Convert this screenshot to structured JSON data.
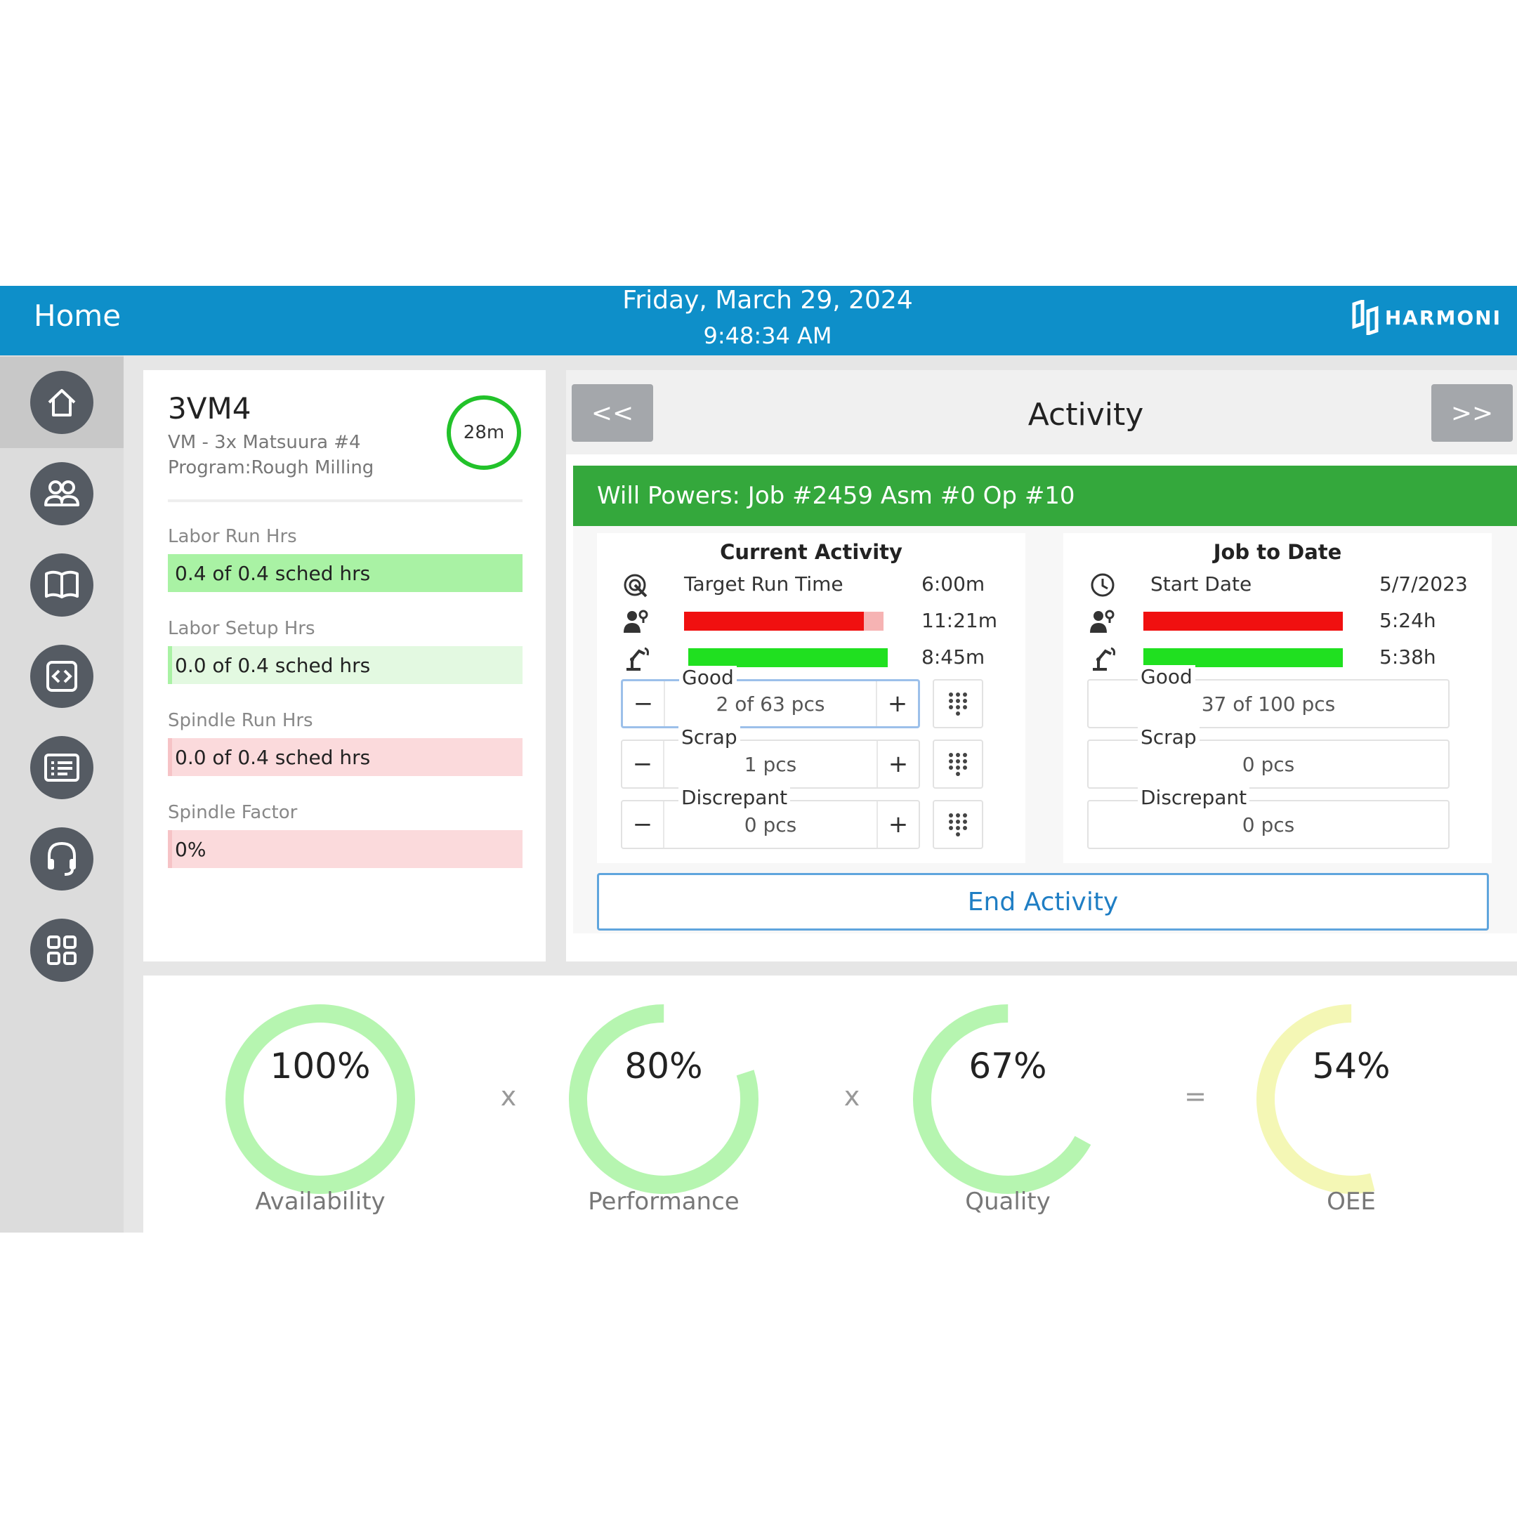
{
  "header": {
    "title": "Home",
    "date": "Friday, March 29, 2024",
    "time": "9:48:34 AM",
    "logo_text": "HARMONI"
  },
  "sidebar": {
    "items": [
      {
        "icon": "home-icon",
        "active": true
      },
      {
        "icon": "users-icon",
        "active": false
      },
      {
        "icon": "book-icon",
        "active": false
      },
      {
        "icon": "code-icon",
        "active": false
      },
      {
        "icon": "list-card-icon",
        "active": false
      },
      {
        "icon": "headset-icon",
        "active": false
      },
      {
        "icon": "grid-icon",
        "active": false
      }
    ]
  },
  "machine": {
    "name": "3VM4",
    "description": "VM - 3x Matsuura #4",
    "program": "Program:Rough Milling",
    "timer": "28m",
    "metrics": [
      {
        "label": "Labor Run Hrs",
        "value": "0.4 of 0.4 sched hrs",
        "status": "good",
        "fill": 1.0
      },
      {
        "label": "Labor Setup Hrs",
        "value": "0.0 of 0.4 sched hrs",
        "status": "good",
        "fill": 0.0
      },
      {
        "label": "Spindle Run Hrs",
        "value": "0.0 of 0.4 sched hrs",
        "status": "bad",
        "fill": 0.0
      },
      {
        "label": "Spindle Factor",
        "value": "0%",
        "status": "bad",
        "fill": 0.0
      }
    ]
  },
  "activity": {
    "title": "Activity",
    "prev_label": "<<",
    "next_label": ">>",
    "job_banner": "Will Powers: Job #2459 Asm #0 Op #10",
    "current": {
      "title": "Current Activity",
      "target_label": "Target Run Time",
      "target_value": "6:00m",
      "labor_value": "11:21m",
      "labor_fill": 0.9,
      "machine_value": "8:45m",
      "machine_fill": 1.0,
      "good_label": "Good",
      "good_value": "2 of 63 pcs",
      "scrap_label": "Scrap",
      "scrap_value": "1 pcs",
      "discrepant_label": "Discrepant",
      "discrepant_value": "0 pcs",
      "minus": "−",
      "plus": "+"
    },
    "job_to_date": {
      "title": "Job to Date",
      "start_label": "Start Date",
      "start_value": "5/7/2023",
      "labor_value": "5:24h",
      "labor_fill": 1.0,
      "machine_value": "5:38h",
      "machine_fill": 1.0,
      "good_label": "Good",
      "good_value": "37 of 100 pcs",
      "scrap_label": "Scrap",
      "scrap_value": "0 pcs",
      "discrepant_label": "Discrepant",
      "discrepant_value": "0 pcs"
    },
    "end_button": "End Activity"
  },
  "oee": {
    "times": "x",
    "equals": "=",
    "gauges": [
      {
        "label": "Availability",
        "value": "100%",
        "fraction": 1.0,
        "color": "#b6f5b0"
      },
      {
        "label": "Performance",
        "value": "80%",
        "fraction": 0.8,
        "color": "#b6f5b0"
      },
      {
        "label": "Quality",
        "value": "67%",
        "fraction": 0.67,
        "color": "#b6f5b0"
      },
      {
        "label": "OEE",
        "value": "54%",
        "fraction": 0.54,
        "color": "#f4f7b5"
      }
    ]
  },
  "colors": {
    "header_bg": "#0e8fc9",
    "banner_green": "#34a83c",
    "good_fill": "#a9f2a4",
    "good_bg": "#e3f9e1",
    "bad_fill": "#f6c3c6",
    "bad_bg": "#fbdadc",
    "bar_red": "#f01010",
    "bar_green": "#20e020",
    "link_blue": "#1f7ec4"
  }
}
